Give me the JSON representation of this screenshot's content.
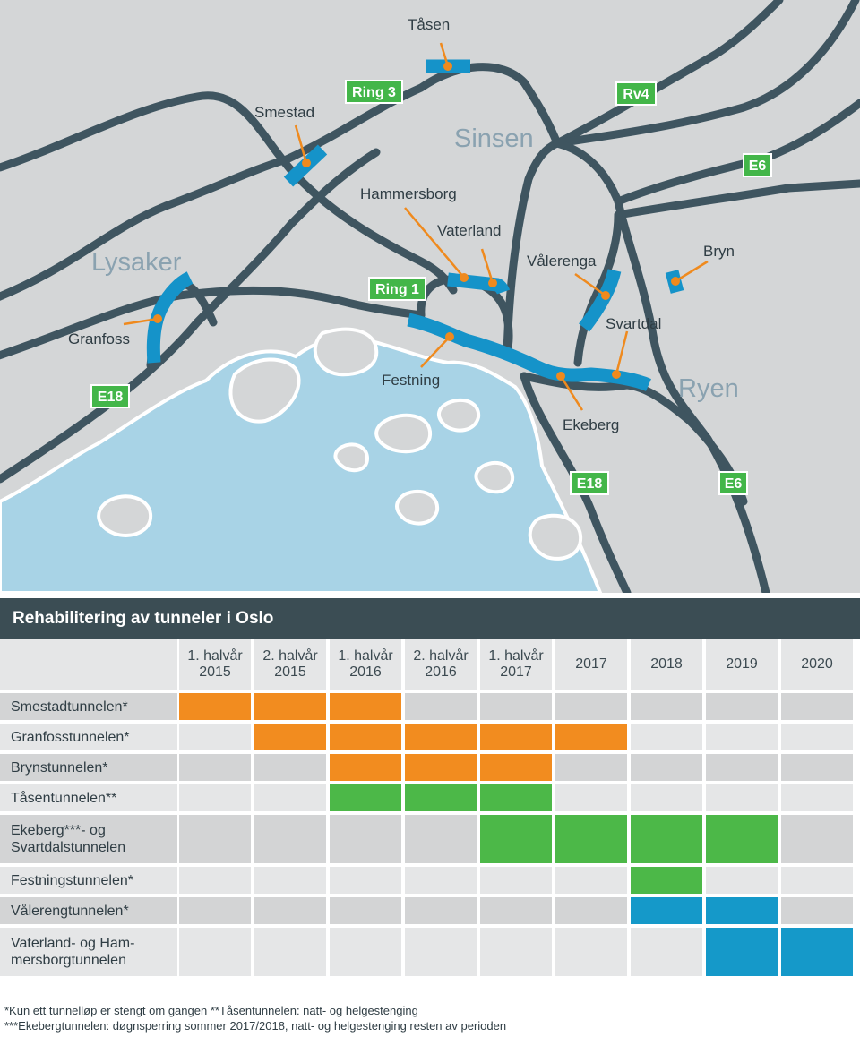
{
  "map": {
    "area_labels": [
      "Sinsen",
      "Lysaker",
      "Ryen"
    ],
    "road_shields": [
      "Ring 3",
      "Rv4",
      "E6",
      "Ring 1",
      "E18",
      "E18",
      "E6"
    ],
    "tunnel_labels": [
      "Tåsen",
      "Smestad",
      "Hammersborg",
      "Vaterland",
      "Vålerenga",
      "Bryn",
      "Svartdal",
      "Granfoss",
      "Festning",
      "Ekeberg"
    ],
    "colors": {
      "land": "#d4d6d7",
      "water": "#a8d3e6",
      "road": "#3f5560",
      "tunnel": "#1593c9",
      "marker": "#ef8a1e",
      "shield": "#43b649"
    }
  },
  "table": {
    "title": "Rehabilitering av tunneler i Oslo",
    "periods": [
      [
        "1. halvår",
        "2015"
      ],
      [
        "2. halvår",
        "2015"
      ],
      [
        "1. halvår",
        "2016"
      ],
      [
        "2. halvår",
        "2016"
      ],
      [
        "1. halvår",
        "2017"
      ],
      [
        "2017"
      ],
      [
        "2018"
      ],
      [
        "2019"
      ],
      [
        "2020"
      ]
    ],
    "rows": [
      {
        "name": [
          "Smestadtunnelen*"
        ],
        "active": [
          0,
          1,
          2
        ],
        "color": "orange"
      },
      {
        "name": [
          "Granfosstunnelen*"
        ],
        "active": [
          1,
          2,
          3,
          4,
          5
        ],
        "color": "orange"
      },
      {
        "name": [
          "Brynstunnelen*"
        ],
        "active": [
          2,
          3,
          4
        ],
        "color": "orange"
      },
      {
        "name": [
          "Tåsentunnelen**"
        ],
        "active": [
          2,
          3,
          4
        ],
        "color": "green"
      },
      {
        "name": [
          "Ekeberg***- og",
          "Svartdalstunnelen"
        ],
        "active": [
          4,
          5,
          6,
          7
        ],
        "color": "green"
      },
      {
        "name": [
          "Festningstunnelen*"
        ],
        "active": [
          6
        ],
        "color": "green"
      },
      {
        "name": [
          "Vålerengtunnelen*"
        ],
        "active": [
          6,
          7
        ],
        "color": "blue"
      },
      {
        "name": [
          "Vaterland- og Ham-",
          "mersborgtunnelen"
        ],
        "active": [
          7,
          8
        ],
        "color": "blue"
      }
    ],
    "palette": {
      "orange": "#f28c1f",
      "green": "#4cb848",
      "blue": "#1599c9",
      "cell_dark": "#d3d4d5",
      "cell_light": "#e5e6e7"
    }
  },
  "notes": [
    "*Kun ett tunnelløp er stengt om gangen   **Tåsentunnelen: natt- og helgestenging",
    "***Ekebergtunnelen: døgnsperring sommer 2017/2018, natt- og helgestenging resten av perioden"
  ]
}
